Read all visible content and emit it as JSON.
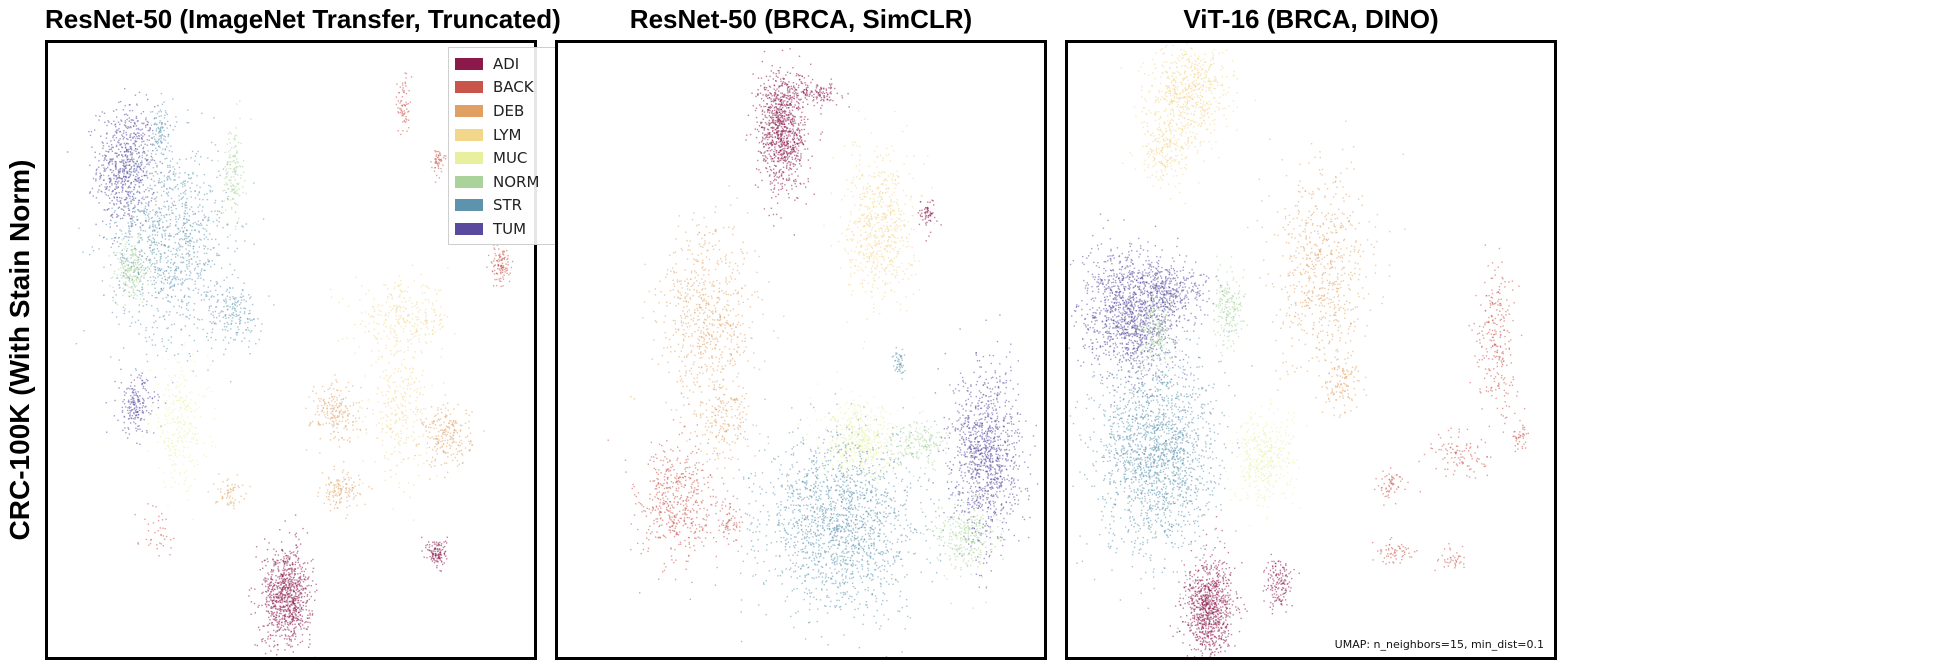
{
  "row_label": "CRC-100K (With Stain Norm)",
  "footnote": "UMAP: n_neighbors=15, min_dist=0.1",
  "legend": [
    {
      "label": "ADI",
      "color": "#8b1a4a"
    },
    {
      "label": "BACK",
      "color": "#c9544a"
    },
    {
      "label": "DEB",
      "color": "#e0a063"
    },
    {
      "label": "LYM",
      "color": "#f2d68a"
    },
    {
      "label": "MUC",
      "color": "#e8f0a0"
    },
    {
      "label": "NORM",
      "color": "#a9d39a"
    },
    {
      "label": "STR",
      "color": "#5e93ad"
    },
    {
      "label": "TUM",
      "color": "#5a4a9e"
    }
  ],
  "chart_data": [
    {
      "type": "scatter",
      "title": "ResNet-50 (ImageNet Transfer, Truncated)",
      "xlabel": "",
      "ylabel": "",
      "legend_position": "top-right",
      "clusters": [
        {
          "cls": "TUM",
          "x": 0.16,
          "y": 0.8,
          "sx": 0.03,
          "sy": 0.05,
          "n": 700
        },
        {
          "cls": "NORM",
          "x": 0.17,
          "y": 0.63,
          "sx": 0.018,
          "sy": 0.025,
          "n": 220
        },
        {
          "cls": "STR",
          "x": 0.25,
          "y": 0.68,
          "sx": 0.06,
          "sy": 0.08,
          "n": 1100
        },
        {
          "cls": "STR",
          "x": 0.38,
          "y": 0.56,
          "sx": 0.03,
          "sy": 0.025,
          "n": 180
        },
        {
          "cls": "NORM",
          "x": 0.38,
          "y": 0.79,
          "sx": 0.01,
          "sy": 0.04,
          "n": 150
        },
        {
          "cls": "TUM",
          "x": 0.18,
          "y": 0.41,
          "sx": 0.02,
          "sy": 0.025,
          "n": 200
        },
        {
          "cls": "MUC",
          "x": 0.27,
          "y": 0.38,
          "sx": 0.03,
          "sy": 0.05,
          "n": 280
        },
        {
          "cls": "LYM",
          "x": 0.73,
          "y": 0.55,
          "sx": 0.05,
          "sy": 0.03,
          "n": 300
        },
        {
          "cls": "LYM",
          "x": 0.72,
          "y": 0.4,
          "sx": 0.03,
          "sy": 0.05,
          "n": 280
        },
        {
          "cls": "DEB",
          "x": 0.59,
          "y": 0.4,
          "sx": 0.025,
          "sy": 0.025,
          "n": 200
        },
        {
          "cls": "DEB",
          "x": 0.82,
          "y": 0.36,
          "sx": 0.025,
          "sy": 0.025,
          "n": 220
        },
        {
          "cls": "DEB",
          "x": 0.6,
          "y": 0.27,
          "sx": 0.02,
          "sy": 0.015,
          "n": 130
        },
        {
          "cls": "ADI",
          "x": 0.49,
          "y": 0.1,
          "sx": 0.025,
          "sy": 0.04,
          "n": 900
        },
        {
          "cls": "ADI",
          "x": 0.8,
          "y": 0.17,
          "sx": 0.01,
          "sy": 0.012,
          "n": 120
        },
        {
          "cls": "BACK",
          "x": 0.93,
          "y": 0.64,
          "sx": 0.01,
          "sy": 0.018,
          "n": 110
        },
        {
          "cls": "BACK",
          "x": 0.73,
          "y": 0.9,
          "sx": 0.006,
          "sy": 0.025,
          "n": 70
        },
        {
          "cls": "BACK",
          "x": 0.8,
          "y": 0.81,
          "sx": 0.006,
          "sy": 0.01,
          "n": 50
        },
        {
          "cls": "DEB",
          "x": 0.37,
          "y": 0.27,
          "sx": 0.015,
          "sy": 0.012,
          "n": 60
        },
        {
          "cls": "BACK",
          "x": 0.22,
          "y": 0.21,
          "sx": 0.02,
          "sy": 0.02,
          "n": 40
        },
        {
          "cls": "STR",
          "x": 0.23,
          "y": 0.86,
          "sx": 0.01,
          "sy": 0.02,
          "n": 90
        }
      ]
    },
    {
      "type": "scatter",
      "title": "ResNet-50 (BRCA, SimCLR)",
      "xlabel": "",
      "ylabel": "",
      "clusters": [
        {
          "cls": "ADI",
          "x": 0.46,
          "y": 0.86,
          "sx": 0.025,
          "sy": 0.05,
          "n": 1000
        },
        {
          "cls": "ADI",
          "x": 0.53,
          "y": 0.92,
          "sx": 0.025,
          "sy": 0.008,
          "n": 120
        },
        {
          "cls": "LYM",
          "x": 0.66,
          "y": 0.7,
          "sx": 0.035,
          "sy": 0.06,
          "n": 650
        },
        {
          "cls": "DEB",
          "x": 0.31,
          "y": 0.55,
          "sx": 0.05,
          "sy": 0.08,
          "n": 700
        },
        {
          "cls": "DEB",
          "x": 0.34,
          "y": 0.38,
          "sx": 0.025,
          "sy": 0.03,
          "n": 150
        },
        {
          "cls": "MUC",
          "x": 0.62,
          "y": 0.35,
          "sx": 0.04,
          "sy": 0.03,
          "n": 500
        },
        {
          "cls": "NORM",
          "x": 0.74,
          "y": 0.35,
          "sx": 0.03,
          "sy": 0.018,
          "n": 180
        },
        {
          "cls": "TUM",
          "x": 0.88,
          "y": 0.33,
          "sx": 0.035,
          "sy": 0.07,
          "n": 1100
        },
        {
          "cls": "NORM",
          "x": 0.84,
          "y": 0.2,
          "sx": 0.03,
          "sy": 0.03,
          "n": 300
        },
        {
          "cls": "STR",
          "x": 0.58,
          "y": 0.22,
          "sx": 0.08,
          "sy": 0.07,
          "n": 1700
        },
        {
          "cls": "BACK",
          "x": 0.24,
          "y": 0.25,
          "sx": 0.04,
          "sy": 0.05,
          "n": 500
        },
        {
          "cls": "BACK",
          "x": 0.35,
          "y": 0.22,
          "sx": 0.015,
          "sy": 0.02,
          "n": 70
        },
        {
          "cls": "ADI",
          "x": 0.76,
          "y": 0.72,
          "sx": 0.01,
          "sy": 0.012,
          "n": 60
        },
        {
          "cls": "STR",
          "x": 0.7,
          "y": 0.48,
          "sx": 0.006,
          "sy": 0.012,
          "n": 50
        }
      ]
    },
    {
      "type": "scatter",
      "title": "ViT-16 (BRCA, DINO)",
      "xlabel": "",
      "ylabel": "",
      "clusters": [
        {
          "cls": "LYM",
          "x": 0.25,
          "y": 0.92,
          "sx": 0.04,
          "sy": 0.04,
          "n": 600
        },
        {
          "cls": "LYM",
          "x": 0.2,
          "y": 0.83,
          "sx": 0.03,
          "sy": 0.03,
          "n": 250
        },
        {
          "cls": "TUM",
          "x": 0.13,
          "y": 0.56,
          "sx": 0.05,
          "sy": 0.05,
          "n": 1300
        },
        {
          "cls": "TUM",
          "x": 0.21,
          "y": 0.6,
          "sx": 0.04,
          "sy": 0.02,
          "n": 300
        },
        {
          "cls": "NORM",
          "x": 0.18,
          "y": 0.53,
          "sx": 0.02,
          "sy": 0.03,
          "n": 200
        },
        {
          "cls": "NORM",
          "x": 0.33,
          "y": 0.57,
          "sx": 0.015,
          "sy": 0.03,
          "n": 200
        },
        {
          "cls": "DEB",
          "x": 0.52,
          "y": 0.63,
          "sx": 0.05,
          "sy": 0.08,
          "n": 650
        },
        {
          "cls": "DEB",
          "x": 0.56,
          "y": 0.45,
          "sx": 0.02,
          "sy": 0.025,
          "n": 120
        },
        {
          "cls": "BACK",
          "x": 0.88,
          "y": 0.52,
          "sx": 0.02,
          "sy": 0.06,
          "n": 250
        },
        {
          "cls": "BACK",
          "x": 0.8,
          "y": 0.33,
          "sx": 0.03,
          "sy": 0.02,
          "n": 100
        },
        {
          "cls": "BACK",
          "x": 0.66,
          "y": 0.28,
          "sx": 0.015,
          "sy": 0.015,
          "n": 60
        },
        {
          "cls": "BACK",
          "x": 0.67,
          "y": 0.17,
          "sx": 0.02,
          "sy": 0.01,
          "n": 60
        },
        {
          "cls": "STR",
          "x": 0.18,
          "y": 0.33,
          "sx": 0.06,
          "sy": 0.08,
          "n": 1800
        },
        {
          "cls": "MUC",
          "x": 0.4,
          "y": 0.32,
          "sx": 0.03,
          "sy": 0.04,
          "n": 400
        },
        {
          "cls": "ADI",
          "x": 0.29,
          "y": 0.08,
          "sx": 0.025,
          "sy": 0.04,
          "n": 900
        },
        {
          "cls": "ADI",
          "x": 0.43,
          "y": 0.12,
          "sx": 0.012,
          "sy": 0.02,
          "n": 150
        },
        {
          "cls": "BACK",
          "x": 0.93,
          "y": 0.36,
          "sx": 0.008,
          "sy": 0.01,
          "n": 40
        },
        {
          "cls": "BACK",
          "x": 0.79,
          "y": 0.16,
          "sx": 0.012,
          "sy": 0.01,
          "n": 40
        }
      ]
    }
  ]
}
